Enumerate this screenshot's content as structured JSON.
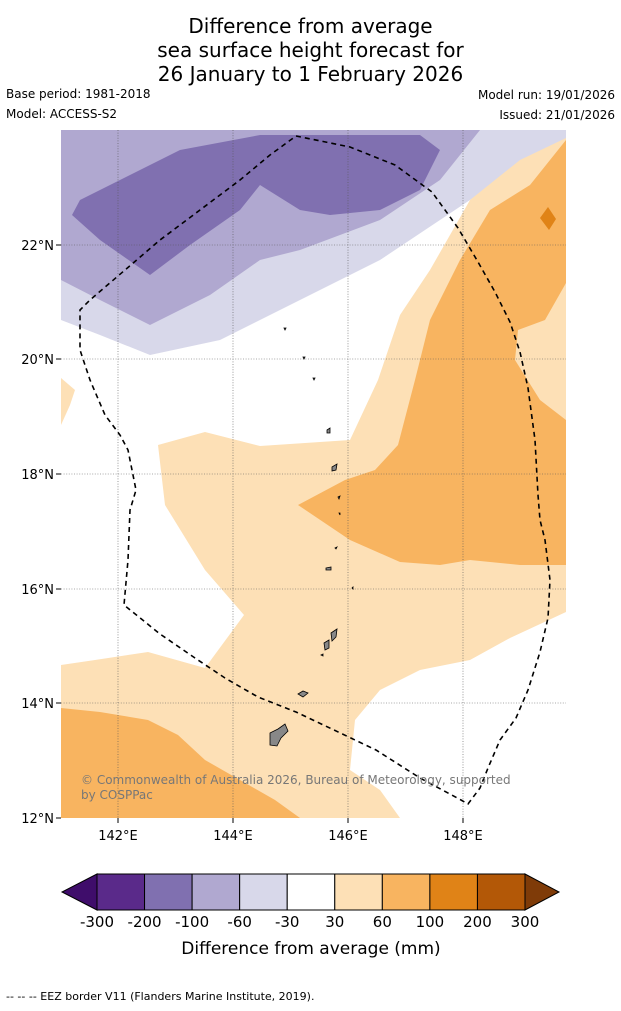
{
  "title": {
    "line1": "Difference from average",
    "line2": "sea surface height forecast for",
    "line3": "26 January to 1 February 2026"
  },
  "meta": {
    "base_period": "Base period: 1981-2018",
    "model": "Model: ACCESS-S2",
    "model_run": "Model run: 19/01/2026",
    "issued": "Issued: 21/01/2026"
  },
  "map": {
    "lat_labels": [
      "22°N",
      "20°N",
      "18°N",
      "16°N",
      "14°N",
      "12°N"
    ],
    "lon_labels": [
      "142°E",
      "144°E",
      "146°E",
      "148°E"
    ],
    "copyright": "© Commonwealth of Australia 2026, Bureau of Meteorology, supported by COSPPac",
    "copyright_line1": "© Commonwealth of Australia 2026, Bureau of Meteorology, supported",
    "copyright_line2": "by COSPPac"
  },
  "colorbar": {
    "ticks": [
      "-300",
      "-200",
      "-100",
      "-60",
      "-30",
      "30",
      "60",
      "100",
      "200",
      "300"
    ],
    "colors": [
      "#3f0d6b",
      "#5a2a8a",
      "#8070b0",
      "#b0a8d0",
      "#d8d8ea",
      "#ffffff",
      "#fde0b6",
      "#f8b460",
      "#e08317",
      "#b35807",
      "#7f3b08"
    ],
    "label": "Difference from average (mm)"
  },
  "footer": {
    "eez_note": "--  --  -- EEZ border V11 (Flanders Marine Institute, 2019)."
  }
}
